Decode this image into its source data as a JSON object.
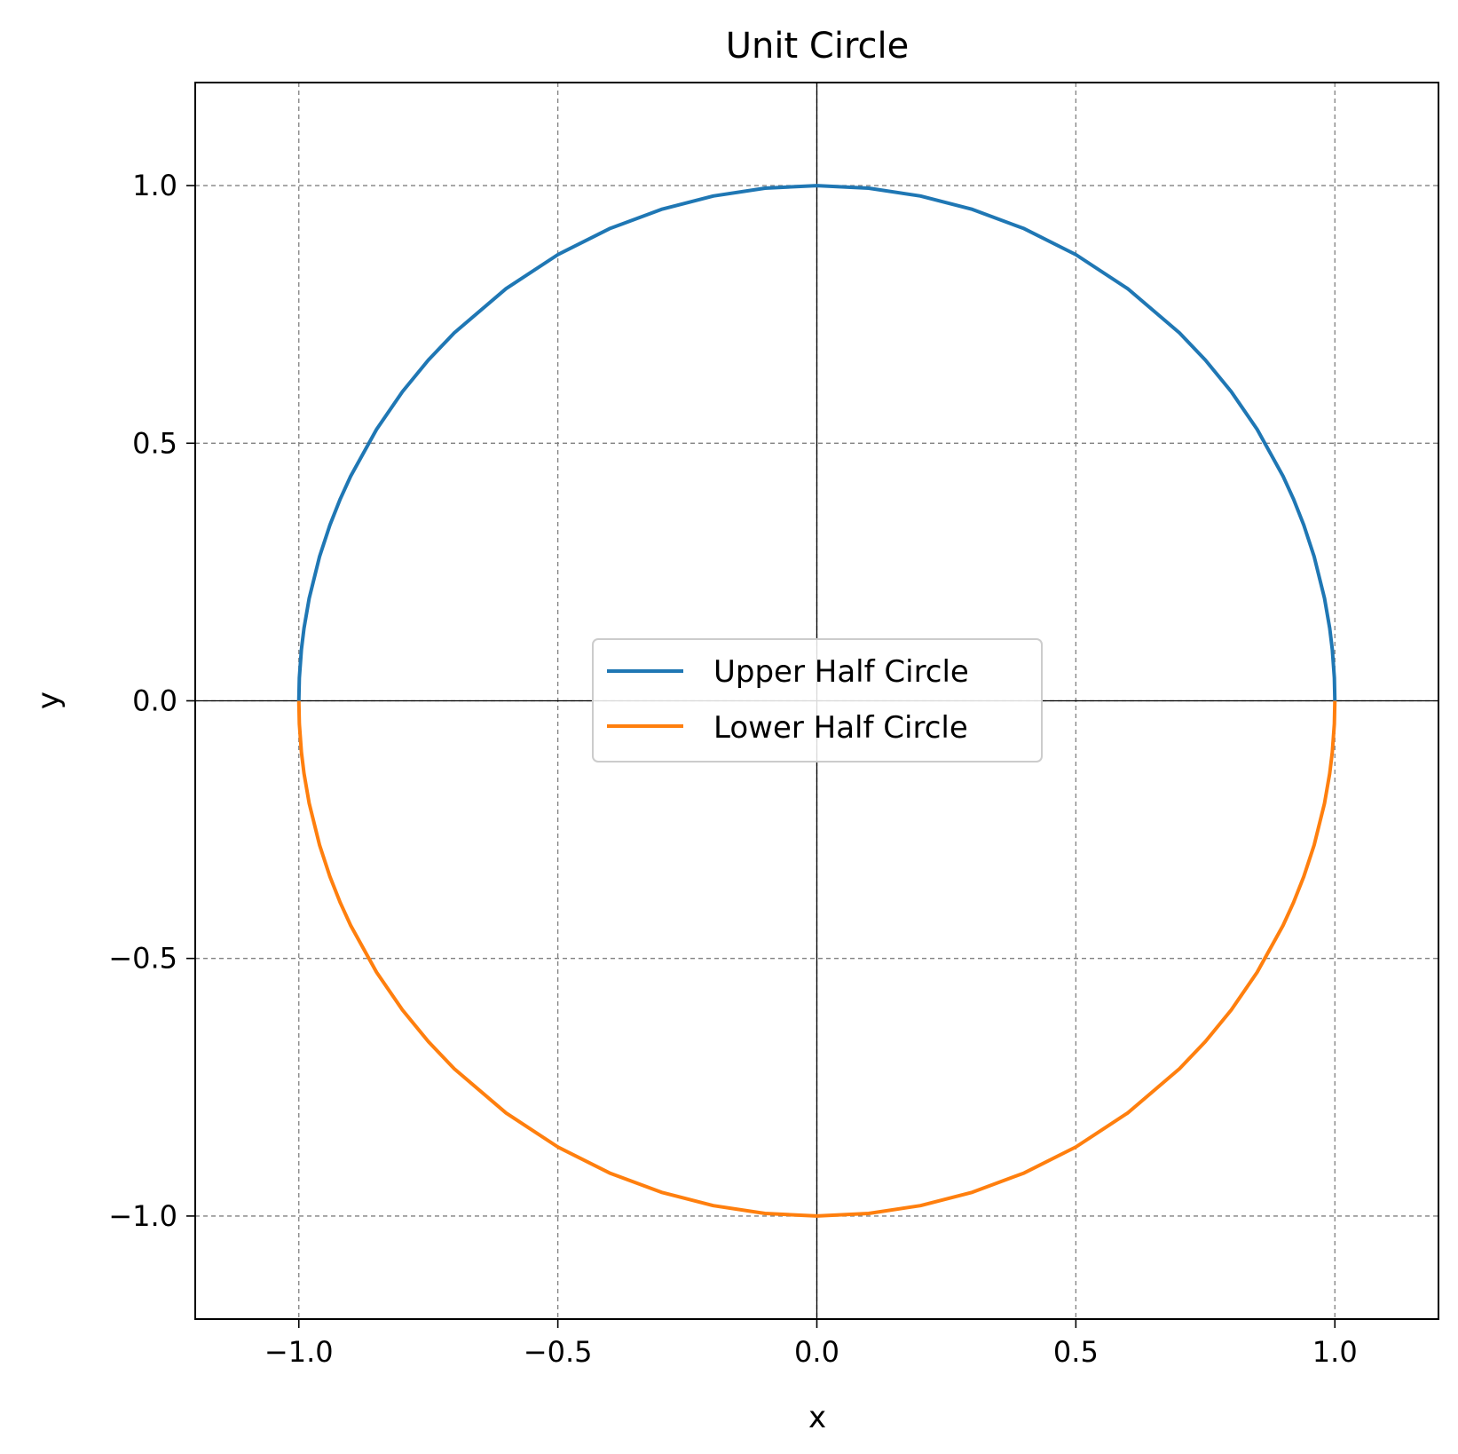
{
  "chart_data": {
    "type": "line",
    "title": "Unit Circle",
    "xlabel": "x",
    "ylabel": "y",
    "xlim": [
      -1.2,
      1.2
    ],
    "ylim": [
      -1.2,
      1.2
    ],
    "xticks": [
      -1.0,
      -0.5,
      0.0,
      0.5,
      1.0
    ],
    "yticks": [
      -1.0,
      -0.5,
      0.0,
      0.5,
      1.0
    ],
    "xtick_labels": [
      "−1.0",
      "−0.5",
      "0.0",
      "0.5",
      "1.0"
    ],
    "ytick_labels": [
      "−1.0",
      "−0.5",
      "0.0",
      "0.5",
      "1.0"
    ],
    "grid": true,
    "zero_lines": true,
    "legend_position": "center",
    "series": [
      {
        "name": "Upper Half Circle",
        "color": "#1f77b4",
        "x": [
          -1.0,
          -0.999,
          -0.995,
          -0.99,
          -0.98,
          -0.96,
          -0.94,
          -0.92,
          -0.9,
          -0.85,
          -0.8,
          -0.75,
          -0.7,
          -0.6,
          -0.5,
          -0.4,
          -0.3,
          -0.2,
          -0.1,
          0.0,
          0.1,
          0.2,
          0.3,
          0.4,
          0.5,
          0.6,
          0.7,
          0.75,
          0.8,
          0.85,
          0.9,
          0.92,
          0.94,
          0.96,
          0.98,
          0.99,
          0.995,
          0.999,
          1.0
        ],
        "y": [
          0.0,
          0.0447,
          0.0999,
          0.1411,
          0.199,
          0.28,
          0.3412,
          0.3919,
          0.4359,
          0.5268,
          0.6,
          0.6614,
          0.7141,
          0.8,
          0.866,
          0.9165,
          0.9539,
          0.9798,
          0.995,
          1.0,
          0.995,
          0.9798,
          0.9539,
          0.9165,
          0.866,
          0.8,
          0.7141,
          0.6614,
          0.6,
          0.5268,
          0.4359,
          0.3919,
          0.3412,
          0.28,
          0.199,
          0.1411,
          0.0999,
          0.0447,
          0.0
        ]
      },
      {
        "name": "Lower Half Circle",
        "color": "#ff7f0e",
        "x": [
          -1.0,
          -0.999,
          -0.995,
          -0.99,
          -0.98,
          -0.96,
          -0.94,
          -0.92,
          -0.9,
          -0.85,
          -0.8,
          -0.75,
          -0.7,
          -0.6,
          -0.5,
          -0.4,
          -0.3,
          -0.2,
          -0.1,
          0.0,
          0.1,
          0.2,
          0.3,
          0.4,
          0.5,
          0.6,
          0.7,
          0.75,
          0.8,
          0.85,
          0.9,
          0.92,
          0.94,
          0.96,
          0.98,
          0.99,
          0.995,
          0.999,
          1.0
        ],
        "y": [
          0.0,
          -0.0447,
          -0.0999,
          -0.1411,
          -0.199,
          -0.28,
          -0.3412,
          -0.3919,
          -0.4359,
          -0.5268,
          -0.6,
          -0.6614,
          -0.7141,
          -0.8,
          -0.866,
          -0.9165,
          -0.9539,
          -0.9798,
          -0.995,
          -1.0,
          -0.995,
          -0.9798,
          -0.9539,
          -0.9165,
          -0.866,
          -0.8,
          -0.7141,
          -0.6614,
          -0.6,
          -0.5268,
          -0.4359,
          -0.3919,
          -0.3412,
          -0.28,
          -0.199,
          -0.1411,
          -0.0999,
          -0.0447,
          0.0
        ]
      }
    ]
  }
}
